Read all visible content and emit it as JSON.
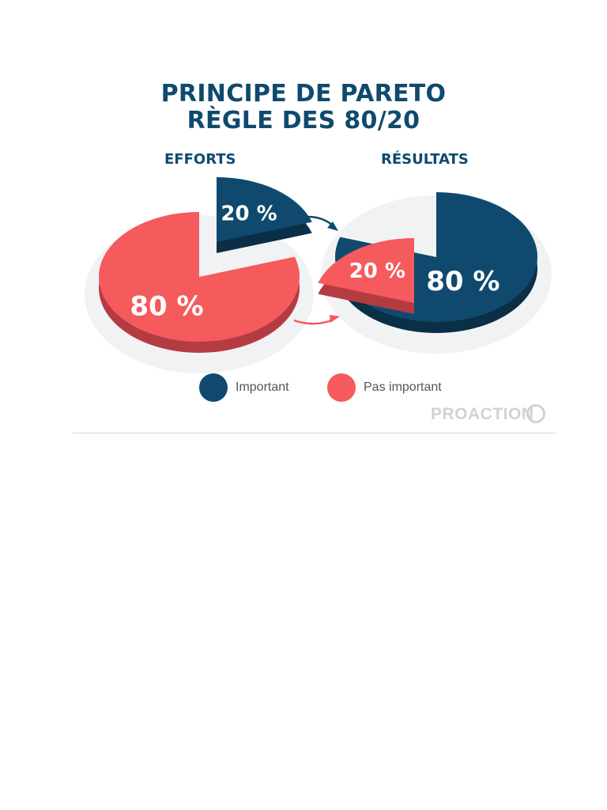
{
  "colors": {
    "important": "#0f4a6e",
    "important_dark": "#0a2f47",
    "pas_important": "#f55a5c",
    "pas_important_dark": "#b53b42",
    "title": "#0f4a6e"
  },
  "title": {
    "line1": "PRINCIPE DE PARETO",
    "line2": "RÈGLE DES 80/20"
  },
  "chart_data": [
    {
      "type": "pie",
      "title": "EFFORTS",
      "slices": [
        {
          "label": "20 %",
          "value": 20,
          "category": "Important"
        },
        {
          "label": "80 %",
          "value": 80,
          "category": "Pas important"
        }
      ]
    },
    {
      "type": "pie",
      "title": "RÉSULTATS",
      "slices": [
        {
          "label": "80 %",
          "value": 80,
          "category": "Important"
        },
        {
          "label": "20 %",
          "value": 20,
          "category": "Pas important"
        }
      ]
    }
  ],
  "legend": {
    "important": "Important",
    "pas_important": "Pas important"
  },
  "brand": {
    "name": "PROACTION"
  }
}
